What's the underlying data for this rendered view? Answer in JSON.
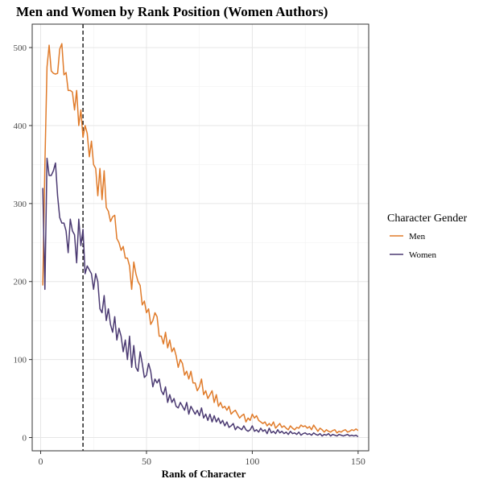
{
  "chart_data": {
    "type": "line",
    "title": "Men and Women by Rank Position (Women Authors)",
    "xlabel": "Rank of Character",
    "ylabel": "",
    "xlim": [
      -4,
      155
    ],
    "ylim": [
      -17,
      530
    ],
    "x_ticks": [
      0,
      50,
      100,
      150
    ],
    "y_ticks": [
      0,
      100,
      200,
      300,
      400,
      500
    ],
    "grid": true,
    "reference_line": {
      "x": 20,
      "style": "dashed"
    },
    "legend": {
      "title": "Character Gender",
      "position": "right"
    },
    "x": [
      1,
      2,
      3,
      4,
      5,
      6,
      7,
      8,
      9,
      10,
      11,
      12,
      13,
      14,
      15,
      16,
      17,
      18,
      19,
      20,
      21,
      22,
      23,
      24,
      25,
      26,
      27,
      28,
      29,
      30,
      31,
      32,
      33,
      34,
      35,
      36,
      37,
      38,
      39,
      40,
      41,
      42,
      43,
      44,
      45,
      46,
      47,
      48,
      49,
      50,
      51,
      52,
      53,
      54,
      55,
      56,
      57,
      58,
      59,
      60,
      61,
      62,
      63,
      64,
      65,
      66,
      67,
      68,
      69,
      70,
      71,
      72,
      73,
      74,
      75,
      76,
      77,
      78,
      79,
      80,
      81,
      82,
      83,
      84,
      85,
      86,
      87,
      88,
      89,
      90,
      91,
      92,
      93,
      94,
      95,
      96,
      97,
      98,
      99,
      100,
      101,
      102,
      103,
      104,
      105,
      106,
      107,
      108,
      109,
      110,
      111,
      112,
      113,
      114,
      115,
      116,
      117,
      118,
      119,
      120,
      121,
      122,
      123,
      124,
      125,
      126,
      127,
      128,
      129,
      130,
      131,
      132,
      133,
      134,
      135,
      136,
      137,
      138,
      139,
      140,
      141,
      142,
      143,
      144,
      145,
      146,
      147,
      148,
      149,
      150
    ],
    "series": [
      {
        "name": "Men",
        "color": "#e07b2a",
        "values": [
          195,
          350,
          475,
          503,
          470,
          467,
          466,
          467,
          498,
          505,
          465,
          468,
          445,
          445,
          443,
          420,
          445,
          400,
          420,
          385,
          400,
          390,
          360,
          380,
          350,
          345,
          310,
          345,
          305,
          342,
          295,
          290,
          277,
          283,
          285,
          255,
          250,
          240,
          245,
          230,
          230,
          220,
          190,
          225,
          210,
          200,
          195,
          170,
          175,
          160,
          165,
          145,
          150,
          160,
          155,
          130,
          130,
          120,
          135,
          115,
          125,
          110,
          115,
          105,
          90,
          100,
          95,
          80,
          85,
          75,
          85,
          70,
          70,
          60,
          65,
          75,
          55,
          60,
          50,
          55,
          60,
          45,
          55,
          40,
          45,
          38,
          40,
          35,
          40,
          30,
          33,
          35,
          30,
          25,
          28,
          30,
          20,
          25,
          22,
          30,
          25,
          28,
          22,
          20,
          18,
          20,
          15,
          18,
          15,
          20,
          12,
          15,
          18,
          13,
          15,
          12,
          10,
          15,
          12,
          10,
          13,
          12,
          16,
          14,
          15,
          12,
          14,
          10,
          16,
          12,
          8,
          12,
          10,
          7,
          10,
          8,
          7,
          9,
          10,
          6,
          8,
          7,
          9,
          10,
          7,
          8,
          10,
          9,
          11,
          9
        ]
      },
      {
        "name": "Women",
        "color": "#4b3a72",
        "values": [
          320,
          190,
          358,
          336,
          336,
          342,
          352,
          310,
          282,
          275,
          275,
          265,
          237,
          280,
          265,
          260,
          224,
          280,
          246,
          267,
          210,
          220,
          215,
          210,
          190,
          210,
          200,
          165,
          160,
          182,
          150,
          165,
          145,
          135,
          155,
          125,
          140,
          130,
          110,
          125,
          100,
          130,
          90,
          118,
          90,
          85,
          110,
          95,
          77,
          80,
          95,
          85,
          65,
          75,
          70,
          75,
          60,
          55,
          65,
          45,
          55,
          45,
          50,
          40,
          38,
          45,
          40,
          35,
          45,
          30,
          40,
          35,
          30,
          35,
          28,
          38,
          25,
          30,
          22,
          30,
          20,
          28,
          20,
          25,
          18,
          22,
          15,
          20,
          13,
          15,
          18,
          10,
          14,
          12,
          10,
          15,
          10,
          8,
          10,
          15,
          8,
          10,
          7,
          12,
          8,
          10,
          5,
          12,
          6,
          8,
          5,
          10,
          6,
          8,
          5,
          7,
          4,
          8,
          5,
          6,
          4,
          7,
          3,
          5,
          6,
          4,
          5,
          3,
          6,
          4,
          3,
          5,
          2,
          4,
          3,
          5,
          2,
          4,
          3,
          2,
          4,
          3,
          2,
          3,
          4,
          2,
          3,
          2,
          3,
          1
        ]
      }
    ]
  }
}
